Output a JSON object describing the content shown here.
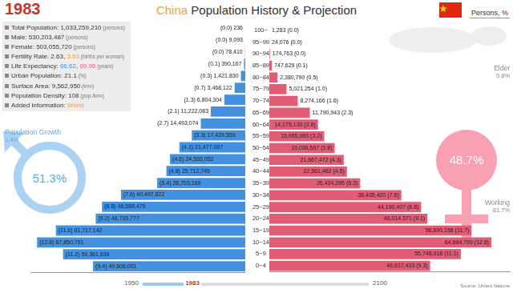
{
  "header": {
    "year": "1983",
    "title": "China Population History & Projection",
    "title_highlight": "China",
    "units": "Persons, %"
  },
  "info": [
    {
      "label": "Total Population:",
      "values": [
        "1,033,259,210"
      ],
      "unit": "(persons)"
    },
    {
      "label": "Male:",
      "values": [
        "530,203,487"
      ],
      "unit": "(persons)"
    },
    {
      "label": "Female:",
      "values": [
        "503,055,720"
      ],
      "unit": "(persons)"
    },
    {
      "label": "Fertility Rate:",
      "values": [
        "2.63",
        "3.53"
      ],
      "colors": [
        "#333333",
        "#e8a23a"
      ],
      "unit": "(births per woman)"
    },
    {
      "label": "Life Expectancy:",
      "values": [
        "66.62",
        "69.96"
      ],
      "colors": [
        "#3d8fdd",
        "#e25c76"
      ],
      "unit": "(years)"
    },
    {
      "label": "Urban Population:",
      "values": [
        "21.1"
      ],
      "unit": "(%)"
    },
    {
      "label": "Surface Area:",
      "values": [
        "9,562,950"
      ],
      "unit": "(km²)"
    },
    {
      "label": "Population Density:",
      "values": [
        "108"
      ],
      "unit": "(pop./km²)"
    },
    {
      "label": "Added Information:",
      "values": [
        "World"
      ],
      "colors": [
        "#e8a23a"
      ],
      "unit": ""
    }
  ],
  "indicators": {
    "growth": {
      "label": "Population Growth",
      "value": "1.4%"
    },
    "elder": {
      "label": "Elder",
      "value": "5.8%"
    },
    "working": {
      "label": "Working",
      "value": "61.7%"
    },
    "male_share": "51.3%",
    "female_share": "48.7%"
  },
  "timeline": {
    "start": 1950,
    "current": 1983,
    "end": 2100
  },
  "source": "Source: United Nations",
  "chart_data": {
    "type": "bar",
    "orientation": "horizontal",
    "grid": false,
    "data_labels": true,
    "tick_labels": "y",
    "categories": [
      "100~",
      "95~99",
      "90~94",
      "85~89",
      "80~84",
      "75~79",
      "70~74",
      "65~69",
      "60~64",
      "55~59",
      "50~54",
      "45~49",
      "40~44",
      "35~39",
      "30~34",
      "25~29",
      "20~24",
      "15~19",
      "10~14",
      "5~9",
      "0~4"
    ],
    "xlim": [
      0,
      70000000
    ],
    "series": [
      {
        "name": "Male",
        "color": "#4391e0",
        "values": [
          236,
          9093,
          78410,
          390167,
          1421830,
          3468122,
          6804304,
          11222083,
          14493074,
          17429559,
          21477057,
          24535052,
          25712745,
          28703169,
          40497822,
          46689476,
          48735777,
          61717142,
          67850751,
          59361639,
          49606001
        ],
        "value_labels": [
          "(0.0) 236",
          "(0.0) 9,093",
          "(0.0) 78,410",
          "(0.1) 390,167",
          "(0.3) 1,421,830",
          "(0.7) 3,468,122",
          "(1.3) 6,804,304",
          "(2.1) 11,222,083",
          "(2.7) 14,493,074",
          "(3.3) 17,429,559",
          "(4.1) 21,477,057",
          "(4.6) 24,535,052",
          "(4.8) 25,712,745",
          "(5.4) 28,703,169",
          "(7.6) 40,497,822",
          "(8.8) 46,689,476",
          "(9.2) 48,735,777",
          "(11.6) 61,717,142",
          "(12.8) 67,850,751",
          "(11.2) 59,361,639",
          "(9.4) 49,606,001"
        ]
      },
      {
        "name": "Female",
        "color": "#e25c76",
        "values": [
          1283,
          24076,
          174763,
          747629,
          2380790,
          5021254,
          8274166,
          11790943,
          14175130,
          15985083,
          19036567,
          21667472,
          22581462,
          26434295,
          38435420,
          44190407,
          46014571,
          58890158,
          64664799,
          55748018,
          46817433
        ],
        "value_labels": [
          "1,283 (0.0)",
          "24,076 (0.0)",
          "174,763 (0.0)",
          "747,629 (0.1)",
          "2,380,790 (0.5)",
          "5,021,254 (1.0)",
          "8,274,166 (1.6)",
          "11,790,943 (2.3)",
          "14,175,130 (2.8)",
          "15,985,083 (3.2)",
          "19,036,567 (3.8)",
          "21,667,472 (4.3)",
          "22,581,462 (4.5)",
          "26,434,295 (5.3)",
          "38,435,420 (7.6)",
          "44,190,407 (8.8)",
          "46,014,571 (9.1)",
          "58,890,158 (11.7)",
          "64,664,799 (12.8)",
          "55,748,018 (11.1)",
          "46,817,433 (9.3)"
        ]
      }
    ]
  }
}
